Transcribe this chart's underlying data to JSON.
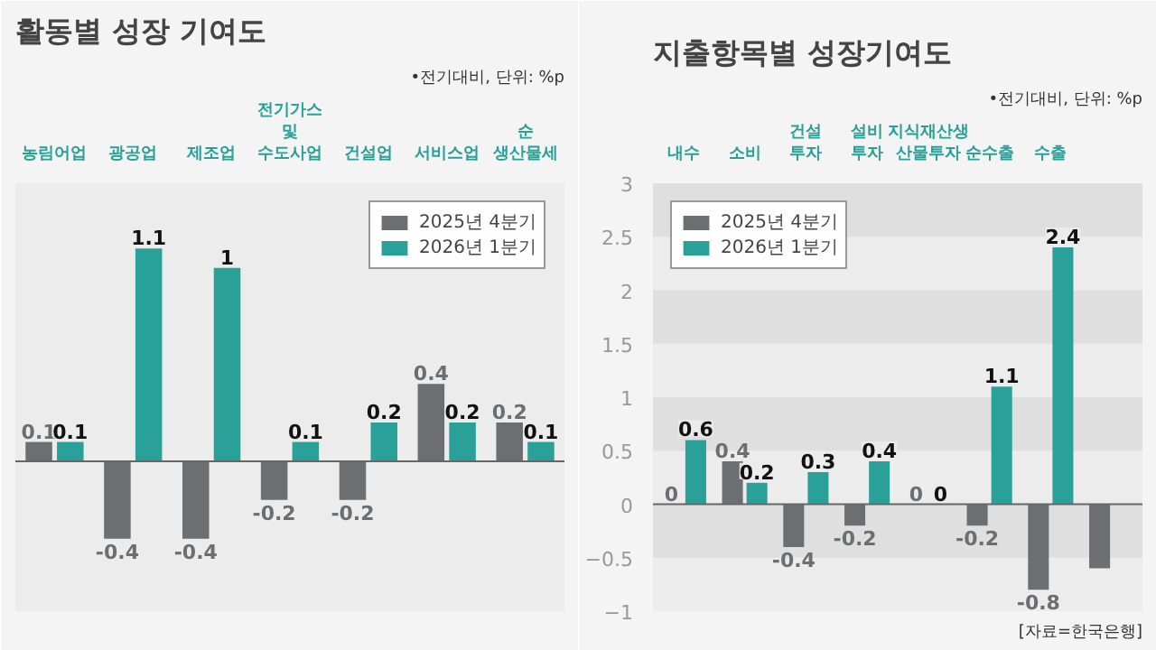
{
  "chart_data": [
    {
      "type": "bar",
      "title": "활동별 성장 기여도",
      "annotations": [
        "•전기대비, 단위: %p"
      ],
      "categories": [
        "농림어업",
        "광공업",
        "제조업",
        "전기가스\n및\n수도사업",
        "건설업",
        "서비스업",
        "순\n생산물세"
      ],
      "series": [
        {
          "name": "2025년 4분기",
          "color": "#6d6e70",
          "values": [
            0.1,
            -0.4,
            -0.4,
            -0.2,
            -0.2,
            0.4,
            0.2
          ]
        },
        {
          "name": "2026년 1분기",
          "color": "#2aa198",
          "values": [
            0.1,
            1.1,
            1,
            0.1,
            0.2,
            0.2,
            0.1
          ]
        }
      ],
      "data_labels": true,
      "legend": "top right",
      "tick_labels": "x"
    },
    {
      "type": "bar",
      "title": "지출항목별 성장기여도",
      "annotations": [
        "•전기대비, 단위: %p",
        "[자료=한국은행]"
      ],
      "categories": [
        "내수",
        "소비",
        "건설\n투자",
        "설비\n투자",
        "지식재산생\n산물투자",
        "순수출",
        "수출",
        null
      ],
      "series": [
        {
          "name": "2025년 4분기",
          "color": "#6d6e70",
          "values": [
            0,
            0.4,
            -0.4,
            -0.2,
            0,
            -0.2,
            -0.8,
            -0.6
          ],
          "value_labels": [
            "0",
            "0.4",
            "-0.4",
            "-0.2",
            "0",
            "-0.2",
            "-0.8",
            null
          ]
        },
        {
          "name": "2026년 1분기",
          "color": "#2aa198",
          "values": [
            0.6,
            0.2,
            0.3,
            0.4,
            0,
            1.1,
            2.4,
            null
          ],
          "value_labels": [
            "0.6",
            "0.2",
            "0.3",
            "0.4",
            "0",
            "1.1",
            "2.4",
            null
          ]
        }
      ],
      "ylim": [
        -1,
        3
      ],
      "yticks": [
        -1,
        -0.5,
        0,
        0.5,
        1,
        1.5,
        2,
        2.5,
        3
      ],
      "grid": "y",
      "legend": "top left"
    }
  ]
}
